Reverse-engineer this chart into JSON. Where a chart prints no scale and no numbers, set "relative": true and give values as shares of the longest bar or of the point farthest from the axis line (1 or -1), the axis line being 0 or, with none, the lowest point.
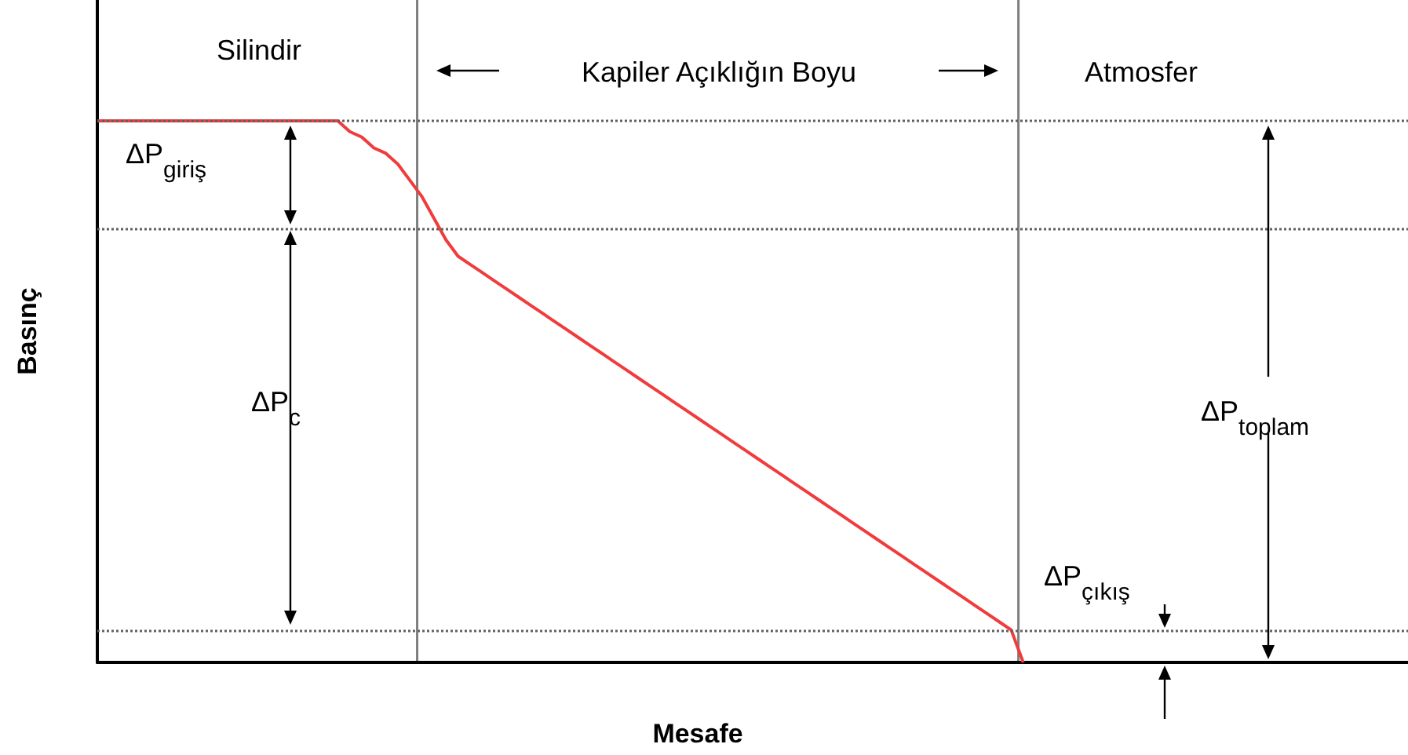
{
  "chart_data": {
    "type": "line",
    "relative": true,
    "xlabel": "Mesafe",
    "ylabel": "Basınç",
    "categories": [
      null,
      null,
      null,
      null,
      null,
      null,
      null,
      null,
      null,
      null,
      null,
      null,
      null,
      null,
      null,
      null,
      null,
      null,
      null,
      null,
      null,
      null,
      null,
      null,
      null,
      null,
      null,
      null,
      null,
      null,
      null,
      null,
      null,
      null,
      null,
      null,
      null,
      null,
      null,
      null,
      null,
      null,
      null,
      null,
      null,
      null,
      null,
      null,
      null,
      null,
      null,
      null,
      null,
      null,
      null,
      null,
      null,
      null,
      null,
      null,
      null,
      null,
      null,
      null,
      null,
      null,
      null,
      null,
      null,
      null,
      null,
      null,
      null,
      null,
      null,
      null,
      null,
      null,
      null,
      null,
      null,
      null,
      null,
      null,
      null,
      null,
      null,
      null,
      null,
      null,
      null,
      null,
      null,
      null,
      null,
      null,
      null,
      null,
      null,
      null,
      null,
      null,
      null,
      null,
      null,
      null,
      null,
      null,
      null,
      null
    ],
    "values": [
      1,
      1,
      1,
      1,
      1,
      1,
      1,
      1,
      1,
      1,
      1,
      1,
      1,
      1,
      1,
      1,
      1,
      1,
      1,
      1,
      1,
      0.98,
      0.97,
      0.95,
      0.94,
      0.92,
      0.89,
      0.86,
      0.82,
      0.78,
      0.75,
      0.735,
      0.72,
      0.705,
      0.69,
      0.675,
      0.66,
      0.645,
      0.63,
      0.615,
      0.6,
      0.585,
      0.57,
      0.555,
      0.54,
      0.525,
      0.51,
      0.495,
      0.48,
      0.465,
      0.45,
      0.435,
      0.42,
      0.405,
      0.39,
      0.375,
      0.36,
      0.345,
      0.33,
      0.315,
      0.3,
      0.285,
      0.27,
      0.255,
      0.24,
      0.225,
      0.21,
      0.195,
      0.18,
      0.165,
      0.15,
      0.135,
      0.12,
      0.105,
      0.09,
      0.075,
      0.06,
      0,
      null,
      null,
      null,
      null,
      null,
      null,
      null,
      null,
      null,
      null,
      null,
      null,
      null,
      null,
      null,
      null,
      null,
      null,
      null,
      null,
      null,
      null,
      null,
      null,
      null,
      null,
      null,
      null,
      null,
      null,
      null,
      null
    ],
    "color": "#f03c3c",
    "tick_labels": false,
    "grid": false,
    "line_style": "solid",
    "ref_lines": [
      {
        "axis": "y",
        "value": 1,
        "color": "#606060",
        "line_style": "dotted"
      },
      {
        "axis": "y",
        "value": 0.8,
        "color": "#606060",
        "line_style": "dotted"
      },
      {
        "axis": "y",
        "value": 0.06,
        "color": "#606060",
        "line_style": "dotted"
      }
    ],
    "annotations": [
      "Silindir",
      "Kapiler Açıklığın Boyu",
      "Atmosfer",
      "ΔP$_{giriş}$",
      "ΔP$_{c}$",
      "ΔP$_{toplam}$",
      "ΔP$_{çıkış}$"
    ]
  }
}
